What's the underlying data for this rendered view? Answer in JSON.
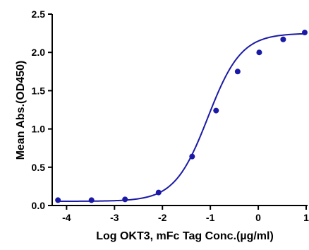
{
  "chart_data": {
    "type": "scatter",
    "title": "",
    "xlabel": "Log OKT3, mFc Tag Conc.(µg/ml)",
    "ylabel": "Mean Abs.(OD450)",
    "xlim": [
      -4.3,
      1.0
    ],
    "ylim": [
      0.0,
      2.5
    ],
    "x_ticks": [
      -4,
      -3,
      -2,
      -1,
      0,
      1
    ],
    "x_tick_labels": [
      "-4",
      "-3",
      "-2",
      "-1",
      "0",
      "1"
    ],
    "y_ticks": [
      0.0,
      0.5,
      1.0,
      1.5,
      2.0,
      2.5
    ],
    "y_tick_labels": [
      "0.0",
      "0.5",
      "1.0",
      "1.5",
      "2.0",
      "2.5"
    ],
    "grid": false,
    "legend": "none",
    "series": [
      {
        "x": [
          -4.18,
          -3.48,
          -2.78,
          -2.08,
          -1.38,
          -0.88,
          -0.43,
          0.02,
          0.52,
          0.97
        ],
        "y": [
          0.07,
          0.07,
          0.08,
          0.17,
          0.64,
          1.24,
          1.75,
          2.0,
          2.17,
          2.26
        ],
        "color": "#1a1aa6",
        "fit": "4PL",
        "fit_params": {
          "bottom": 0.055,
          "top": 2.25,
          "log_ec50": -1.05,
          "hill": 1.25
        }
      }
    ]
  }
}
